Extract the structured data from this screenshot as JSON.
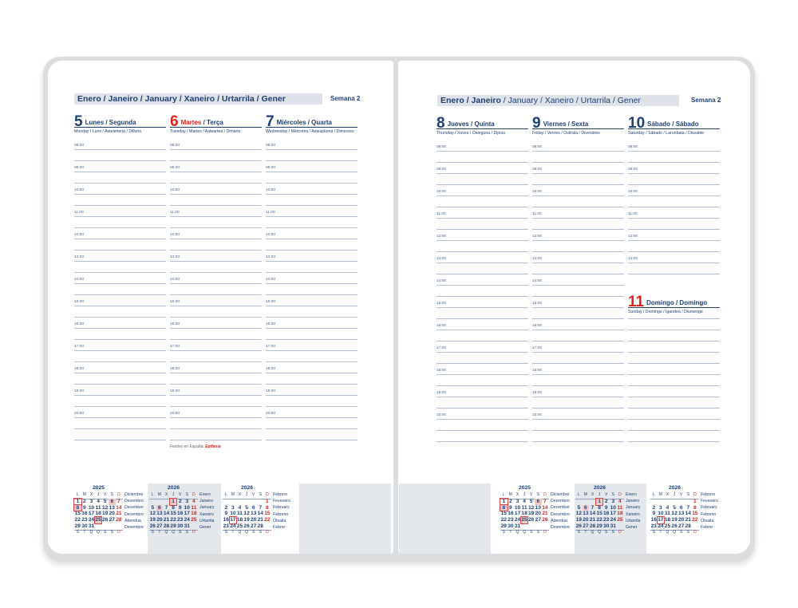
{
  "hours": [
    "08:00",
    "09:00",
    "10:00",
    "11:00",
    "12:00",
    "13:00",
    "14:00",
    "15:00",
    "16:00",
    "17:00",
    "18:00",
    "19:00",
    "20:00"
  ],
  "pages": [
    {
      "month_bold": "Enero / Janeiro",
      "month_rest": " / January / Xaneiro / Urtarrila / Gener",
      "week": "Semana 2",
      "days": [
        {
          "num": "5",
          "name": "Lunes",
          "name2": " / Segunda",
          "sub": "Monday / Luns / Astelehena / Dilluns",
          "red_num": false,
          "red_name": false
        },
        {
          "num": "6",
          "name": "Martes",
          "name2": " / Terça",
          "sub": "Tuesday / Martes / Asteartea / Dimarts",
          "red_num": true,
          "red_name": true
        },
        {
          "num": "7",
          "name": "Miércoles",
          "name2": " / Quarta",
          "sub": "Wednesday / Mércores / Asteazkena / Dimecres",
          "red_num": false,
          "red_name": false
        }
      ],
      "note": {
        "label": "Festivo en España: ",
        "value": "Epifanía"
      }
    },
    {
      "month_bold": "Enero / Janeiro",
      "month_rest": " / January / Xaneiro / Urtarrila / Gener",
      "week": "Semana 2",
      "days": [
        {
          "num": "8",
          "name": "Jueves",
          "name2": " / Quinta",
          "sub": "Thursday / Xoves / Osteguna / Dijous",
          "red_num": false,
          "red_name": false
        },
        {
          "num": "9",
          "name": "Viernes",
          "name2": " / Sexta",
          "sub": "Friday / Venres / Ostirala / Divendres",
          "red_num": false,
          "red_name": false
        },
        {
          "num": "10",
          "name": "Sábado",
          "name2": " / Sábado",
          "sub": "Saturday / Sábado / Larunbata / Dissabte",
          "red_num": false,
          "red_name": false
        },
        {
          "num": "11",
          "name": "Domingo",
          "name2": " / Domingo",
          "sub": "Sunday / Domingo / Igandea / Diumenge",
          "red_num": true,
          "red_name": false
        }
      ]
    }
  ],
  "mini_calendars": [
    {
      "year": "2025",
      "head": [
        "L",
        "M",
        "X",
        "J",
        "V",
        "S",
        "D"
      ],
      "foot": [
        "S",
        "T",
        "Q",
        "Q",
        "S",
        "S",
        "D"
      ],
      "weeks": [
        [
          "1",
          "2",
          "3",
          "4",
          "5",
          "6",
          "7"
        ],
        [
          "8",
          "9",
          "10",
          "11",
          "12",
          "13",
          "14"
        ],
        [
          "15",
          "16",
          "17",
          "18",
          "19",
          "20",
          "21"
        ],
        [
          "22",
          "23",
          "24",
          "25",
          "26",
          "27",
          "28"
        ],
        [
          "29",
          "30",
          "31",
          "",
          "",
          "",
          ""
        ]
      ],
      "boxed": [
        "1",
        "8",
        "25"
      ],
      "shaded": [
        "6",
        "8",
        "25"
      ],
      "labels": [
        "Diciembre",
        "Dezembro",
        "December",
        "Decembro",
        "Abendua",
        "Desembre"
      ]
    },
    {
      "year": "2026",
      "head": [
        "L",
        "M",
        "X",
        "J",
        "V",
        "S",
        "D"
      ],
      "foot": [
        "S",
        "T",
        "Q",
        "Q",
        "S",
        "S",
        "D"
      ],
      "weeks": [
        [
          "",
          "",
          "",
          "1",
          "2",
          "3",
          "4"
        ],
        [
          "5",
          "6",
          "7",
          "8",
          "9",
          "10",
          "11"
        ],
        [
          "12",
          "13",
          "14",
          "15",
          "16",
          "17",
          "18"
        ],
        [
          "19",
          "20",
          "21",
          "22",
          "23",
          "24",
          "25"
        ],
        [
          "26",
          "27",
          "28",
          "29",
          "30",
          "31",
          ""
        ]
      ],
      "boxed": [
        "1"
      ],
      "shaded": [
        "1",
        "6"
      ],
      "labels": [
        "Enero",
        "Janeiro",
        "January",
        "Xaneiro",
        "Urtarrila",
        "Gener"
      ]
    },
    {
      "year": "2026",
      "head": [
        "L",
        "M",
        "X",
        "J",
        "V",
        "S",
        "D"
      ],
      "foot": [
        "S",
        "T",
        "Q",
        "Q",
        "S",
        "S",
        "D"
      ],
      "weeks": [
        [
          "",
          "",
          "",
          "",
          "",
          "",
          "1"
        ],
        [
          "2",
          "3",
          "4",
          "5",
          "6",
          "7",
          "8"
        ],
        [
          "9",
          "10",
          "11",
          "12",
          "13",
          "14",
          "15"
        ],
        [
          "16",
          "17",
          "18",
          "19",
          "20",
          "21",
          "22"
        ],
        [
          "23",
          "24",
          "25",
          "26",
          "27",
          "28",
          ""
        ]
      ],
      "boxed": [
        "17"
      ],
      "shaded": [],
      "labels": [
        "Febrero",
        "Fevereiro",
        "February",
        "Febreiro",
        "Otsaila",
        "Febrer"
      ]
    }
  ],
  "colors": {
    "navy": "#1f3f73",
    "red": "#e3201b",
    "band": "#dfe3e9",
    "line": "#b3c0d3"
  }
}
